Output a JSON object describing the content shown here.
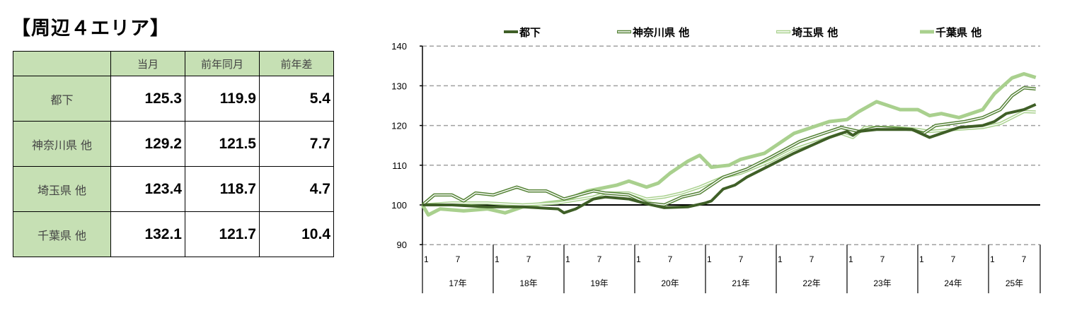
{
  "title": "【周辺４エリア】",
  "table": {
    "headers": [
      "",
      "当月",
      "前年同月",
      "前年差"
    ],
    "rows": [
      {
        "area": "都下",
        "current": "125.3",
        "prev_year": "119.9",
        "diff": "5.4"
      },
      {
        "area": "神奈川県 他",
        "current": "129.2",
        "prev_year": "121.5",
        "diff": "7.7"
      },
      {
        "area": "埼玉県 他",
        "current": "123.4",
        "prev_year": "118.7",
        "diff": "4.7"
      },
      {
        "area": "千葉県 他",
        "current": "132.1",
        "prev_year": "121.7",
        "diff": "10.4"
      }
    ]
  },
  "chart_data": {
    "type": "line",
    "ylim": [
      90,
      140
    ],
    "yticks": [
      90,
      100,
      110,
      120,
      130,
      140
    ],
    "grid": true,
    "legend_position": "top",
    "x_start": "2017-01",
    "x_end": "2025-09",
    "month_ticks": [
      "1",
      "7"
    ],
    "years": [
      "17年",
      "18年",
      "19年",
      "20年",
      "21年",
      "22年",
      "23年",
      "24年",
      "25年"
    ],
    "series": [
      {
        "name": "都下",
        "color": "#3f5f27",
        "style": "solid",
        "points": [
          [
            "2017-01",
            100
          ],
          [
            "2017-06",
            100
          ],
          [
            "2017-12",
            99.5
          ],
          [
            "2018-06",
            99.5
          ],
          [
            "2018-12",
            99
          ],
          [
            "2019-01",
            98
          ],
          [
            "2019-03",
            99
          ],
          [
            "2019-06",
            101.5
          ],
          [
            "2019-08",
            102
          ],
          [
            "2019-12",
            101.5
          ],
          [
            "2020-03",
            100.3
          ],
          [
            "2020-06",
            99.3
          ],
          [
            "2020-10",
            99.5
          ],
          [
            "2021-01",
            100.5
          ],
          [
            "2021-02",
            101
          ],
          [
            "2021-04",
            104
          ],
          [
            "2021-06",
            105
          ],
          [
            "2021-08",
            107
          ],
          [
            "2021-12",
            110
          ],
          [
            "2022-04",
            113
          ],
          [
            "2022-07",
            115
          ],
          [
            "2022-10",
            117
          ],
          [
            "2023-01",
            118.5
          ],
          [
            "2023-02",
            117.5
          ],
          [
            "2023-03",
            118.5
          ],
          [
            "2023-06",
            119
          ],
          [
            "2023-12",
            119
          ],
          [
            "2024-03",
            117
          ],
          [
            "2024-05",
            118
          ],
          [
            "2024-08",
            119.5
          ],
          [
            "2024-12",
            120
          ],
          [
            "2025-02",
            121
          ],
          [
            "2025-04",
            123
          ],
          [
            "2025-07",
            124
          ],
          [
            "2025-09",
            125.3
          ]
        ]
      },
      {
        "name": "神奈川県 他",
        "color": "#548235",
        "style": "double",
        "points": [
          [
            "2017-01",
            100
          ],
          [
            "2017-03",
            102.5
          ],
          [
            "2017-06",
            102.5
          ],
          [
            "2017-08",
            101
          ],
          [
            "2017-10",
            103
          ],
          [
            "2018-01",
            102.5
          ],
          [
            "2018-05",
            104.5
          ],
          [
            "2018-07",
            103.5
          ],
          [
            "2018-10",
            103.5
          ],
          [
            "2019-01",
            101.5
          ],
          [
            "2019-06",
            103.5
          ],
          [
            "2019-08",
            103
          ],
          [
            "2019-12",
            102.5
          ],
          [
            "2020-03",
            100.5
          ],
          [
            "2020-06",
            100
          ],
          [
            "2020-09",
            102
          ],
          [
            "2020-12",
            103
          ],
          [
            "2021-04",
            107
          ],
          [
            "2021-08",
            109
          ],
          [
            "2021-12",
            112
          ],
          [
            "2022-05",
            116
          ],
          [
            "2022-09",
            118
          ],
          [
            "2022-12",
            119.5
          ],
          [
            "2023-03",
            118.5
          ],
          [
            "2023-06",
            119.5
          ],
          [
            "2023-12",
            119
          ],
          [
            "2024-02",
            118
          ],
          [
            "2024-04",
            120
          ],
          [
            "2024-09",
            121
          ],
          [
            "2024-12",
            122
          ],
          [
            "2025-03",
            124
          ],
          [
            "2025-05",
            127.5
          ],
          [
            "2025-07",
            129.5
          ],
          [
            "2025-09",
            129.2
          ]
        ]
      },
      {
        "name": "埼玉県 他",
        "color": "#a9d18e",
        "style": "double",
        "points": [
          [
            "2017-01",
            100
          ],
          [
            "2017-06",
            100.5
          ],
          [
            "2017-12",
            100.5
          ],
          [
            "2018-06",
            100
          ],
          [
            "2018-12",
            100.5
          ],
          [
            "2019-06",
            102
          ],
          [
            "2019-08",
            103
          ],
          [
            "2019-12",
            103
          ],
          [
            "2020-03",
            101.5
          ],
          [
            "2020-06",
            102
          ],
          [
            "2020-09",
            103
          ],
          [
            "2020-12",
            104.5
          ],
          [
            "2021-04",
            107
          ],
          [
            "2021-07",
            108
          ],
          [
            "2021-12",
            111
          ],
          [
            "2022-04",
            114
          ],
          [
            "2022-08",
            116
          ],
          [
            "2022-12",
            118
          ],
          [
            "2023-02",
            117
          ],
          [
            "2023-04",
            119.5
          ],
          [
            "2023-09",
            119.5
          ],
          [
            "2024-01",
            119
          ],
          [
            "2024-03",
            118.5
          ],
          [
            "2024-07",
            119
          ],
          [
            "2024-12",
            119.5
          ],
          [
            "2025-03",
            120.5
          ],
          [
            "2025-05",
            122
          ],
          [
            "2025-07",
            123.5
          ],
          [
            "2025-09",
            123.4
          ]
        ]
      },
      {
        "name": "千葉県 他",
        "color": "#a9d08e",
        "style": "thick",
        "points": [
          [
            "2017-01",
            100
          ],
          [
            "2017-02",
            97.5
          ],
          [
            "2017-04",
            99
          ],
          [
            "2017-08",
            98.5
          ],
          [
            "2017-12",
            99
          ],
          [
            "2018-03",
            98
          ],
          [
            "2018-06",
            99.5
          ],
          [
            "2018-10",
            100.5
          ],
          [
            "2019-01",
            101
          ],
          [
            "2019-05",
            103.5
          ],
          [
            "2019-10",
            105
          ],
          [
            "2019-12",
            106
          ],
          [
            "2020-03",
            104.5
          ],
          [
            "2020-05",
            105.5
          ],
          [
            "2020-07",
            108
          ],
          [
            "2020-10",
            111
          ],
          [
            "2020-12",
            112.5
          ],
          [
            "2021-02",
            109.5
          ],
          [
            "2021-05",
            110
          ],
          [
            "2021-07",
            111.5
          ],
          [
            "2021-11",
            113
          ],
          [
            "2022-01",
            115
          ],
          [
            "2022-04",
            118
          ],
          [
            "2022-07",
            119.5
          ],
          [
            "2022-10",
            121
          ],
          [
            "2023-01",
            121.5
          ],
          [
            "2023-03",
            123.5
          ],
          [
            "2023-06",
            126
          ],
          [
            "2023-10",
            124
          ],
          [
            "2024-01",
            124
          ],
          [
            "2024-03",
            122.5
          ],
          [
            "2024-05",
            123
          ],
          [
            "2024-08",
            122
          ],
          [
            "2024-12",
            124
          ],
          [
            "2025-02",
            128
          ],
          [
            "2025-05",
            132
          ],
          [
            "2025-07",
            133
          ],
          [
            "2025-09",
            132.1
          ]
        ]
      }
    ]
  }
}
